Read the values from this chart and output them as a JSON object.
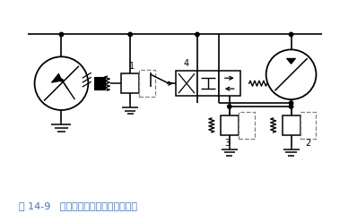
{
  "title": "图 14-9   用溢流阀的液压马达制动回路",
  "title_color": "#4472c4",
  "bg_color": "#ffffff",
  "line_color": "#000000",
  "fig_width": 3.98,
  "fig_height": 2.48,
  "dpi": 100
}
